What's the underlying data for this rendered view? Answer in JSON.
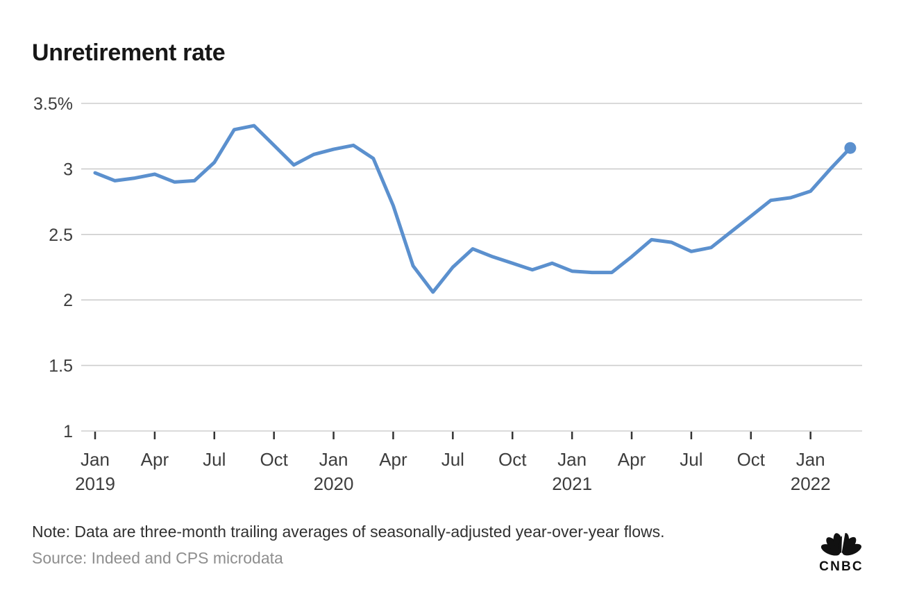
{
  "header": {
    "title": "Unretirement rate"
  },
  "chart_data": {
    "type": "line",
    "title": "Unretirement rate",
    "unit": "%",
    "grid": "horizontal",
    "legend": "none",
    "y_axis": {
      "ylim": [
        1,
        3.5
      ],
      "ticks": [
        {
          "value": 3.5,
          "label": "3.5%"
        },
        {
          "value": 3.0,
          "label": "3"
        },
        {
          "value": 2.5,
          "label": "2.5"
        },
        {
          "value": 2.0,
          "label": "2"
        },
        {
          "value": 1.5,
          "label": "1.5"
        },
        {
          "value": 1.0,
          "label": "1"
        }
      ]
    },
    "x_axis": {
      "ticks": [
        {
          "month_index": 0,
          "label": "Jan",
          "year": "2019"
        },
        {
          "month_index": 3,
          "label": "Apr"
        },
        {
          "month_index": 6,
          "label": "Jul"
        },
        {
          "month_index": 9,
          "label": "Oct"
        },
        {
          "month_index": 12,
          "label": "Jan",
          "year": "2020"
        },
        {
          "month_index": 15,
          "label": "Apr"
        },
        {
          "month_index": 18,
          "label": "Jul"
        },
        {
          "month_index": 21,
          "label": "Oct"
        },
        {
          "month_index": 24,
          "label": "Jan",
          "year": "2021"
        },
        {
          "month_index": 27,
          "label": "Apr"
        },
        {
          "month_index": 30,
          "label": "Jul"
        },
        {
          "month_index": 33,
          "label": "Oct"
        },
        {
          "month_index": 36,
          "label": "Jan",
          "year": "2022"
        }
      ]
    },
    "series": [
      {
        "name": "Unretirement rate",
        "color": "#5b90ce",
        "end_point_marker": true,
        "x": [
          "Jan 2019",
          "Feb 2019",
          "Mar 2019",
          "Apr 2019",
          "May 2019",
          "Jun 2019",
          "Jul 2019",
          "Aug 2019",
          "Sep 2019",
          "Oct 2019",
          "Nov 2019",
          "Dec 2019",
          "Jan 2020",
          "Feb 2020",
          "Mar 2020",
          "Apr 2020",
          "May 2020",
          "Jun 2020",
          "Jul 2020",
          "Aug 2020",
          "Sep 2020",
          "Oct 2020",
          "Nov 2020",
          "Dec 2020",
          "Jan 2021",
          "Feb 2021",
          "Mar 2021",
          "Apr 2021",
          "May 2021",
          "Jun 2021",
          "Jul 2021",
          "Aug 2021",
          "Sep 2021",
          "Oct 2021",
          "Nov 2021",
          "Dec 2021",
          "Jan 2022",
          "Feb 2022",
          "Mar 2022"
        ],
        "values": [
          2.97,
          2.91,
          2.93,
          2.96,
          2.9,
          2.91,
          3.05,
          3.3,
          3.33,
          3.18,
          3.03,
          3.11,
          3.15,
          3.18,
          3.08,
          2.72,
          2.26,
          2.06,
          2.25,
          2.39,
          2.33,
          2.28,
          2.23,
          2.28,
          2.22,
          2.21,
          2.21,
          2.33,
          2.46,
          2.44,
          2.37,
          2.4,
          2.52,
          2.64,
          2.76,
          2.78,
          2.83,
          3.0,
          3.16
        ]
      }
    ],
    "colors": {
      "line": "#5b90ce",
      "gridline": "#cdcdcd",
      "axis_label": "#3d3d3d",
      "tick_mark": "#333333"
    }
  },
  "footer": {
    "note": "Note: Data are three-month trailing averages of seasonally-adjusted year-over-year flows.",
    "source": "Source: Indeed and CPS microdata",
    "logo_text": "CNBC"
  }
}
